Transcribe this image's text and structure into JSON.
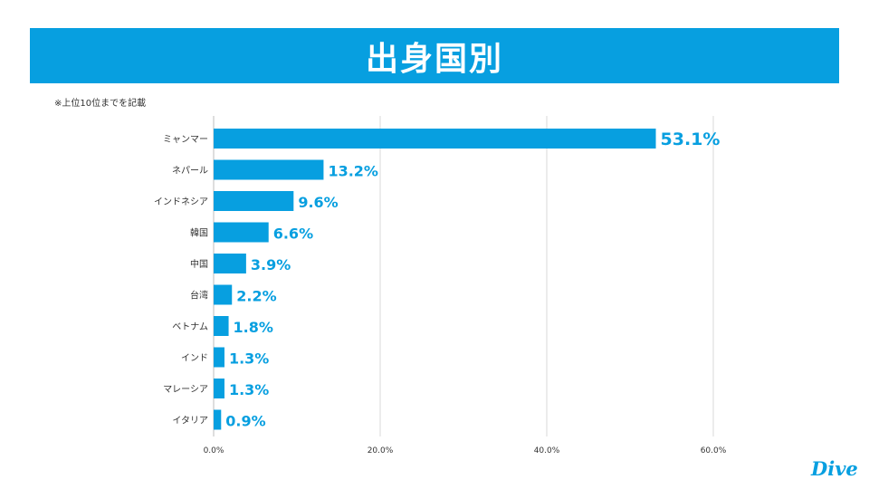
{
  "header": {
    "title": "出身国別"
  },
  "note": "※上位10位までを記載",
  "logo": "Dive",
  "colors": {
    "accent": "#079fe0",
    "grid": "#d9d9d9",
    "axis": "#bdbdbd",
    "label": "#333333"
  },
  "chart_data": {
    "type": "bar",
    "orientation": "horizontal",
    "title": "出身国別",
    "categories": [
      "ミャンマー",
      "ネパール",
      "インドネシア",
      "韓国",
      "中国",
      "台湾",
      "ベトナム",
      "インド",
      "マレーシア",
      "イタリア"
    ],
    "values": [
      53.1,
      13.2,
      9.6,
      6.6,
      3.9,
      2.2,
      1.8,
      1.3,
      1.3,
      0.9
    ],
    "data_labels": [
      "53.1%",
      "13.2%",
      "9.6%",
      "6.6%",
      "3.9%",
      "2.2%",
      "1.8%",
      "1.3%",
      "1.3%",
      "0.9%"
    ],
    "x_ticks": [
      0,
      20,
      40,
      60
    ],
    "x_tick_labels": [
      "0.0%",
      "20.0%",
      "40.0%",
      "60.0%"
    ],
    "xlim": [
      0,
      60
    ],
    "grid": true,
    "legend": "none"
  }
}
